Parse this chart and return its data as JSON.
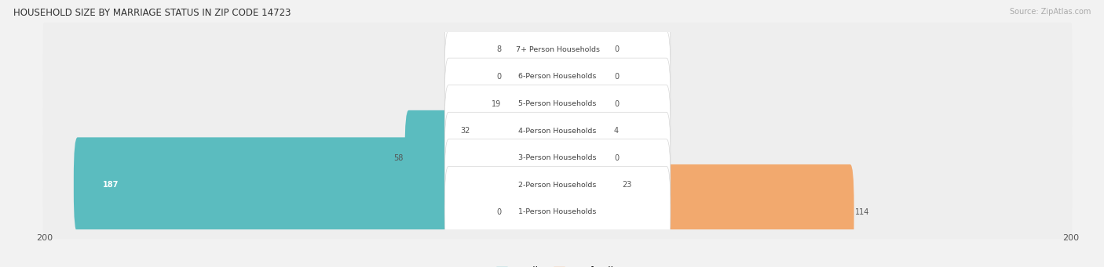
{
  "title": "HOUSEHOLD SIZE BY MARRIAGE STATUS IN ZIP CODE 14723",
  "source": "Source: ZipAtlas.com",
  "categories": [
    "7+ Person Households",
    "6-Person Households",
    "5-Person Households",
    "4-Person Households",
    "3-Person Households",
    "2-Person Households",
    "1-Person Households"
  ],
  "family": [
    8,
    0,
    19,
    32,
    58,
    187,
    0
  ],
  "nonfamily": [
    0,
    0,
    0,
    4,
    0,
    23,
    114
  ],
  "family_color": "#5bbcbf",
  "nonfamily_color": "#f2a96e",
  "row_bg_color": "#ebebeb",
  "row_bg_color_alt": "#e2e2e2",
  "label_bg_color": "#ffffff",
  "xlim": 200,
  "min_stub": 20,
  "figsize": [
    14.06,
    3.41
  ],
  "dpi": 100
}
